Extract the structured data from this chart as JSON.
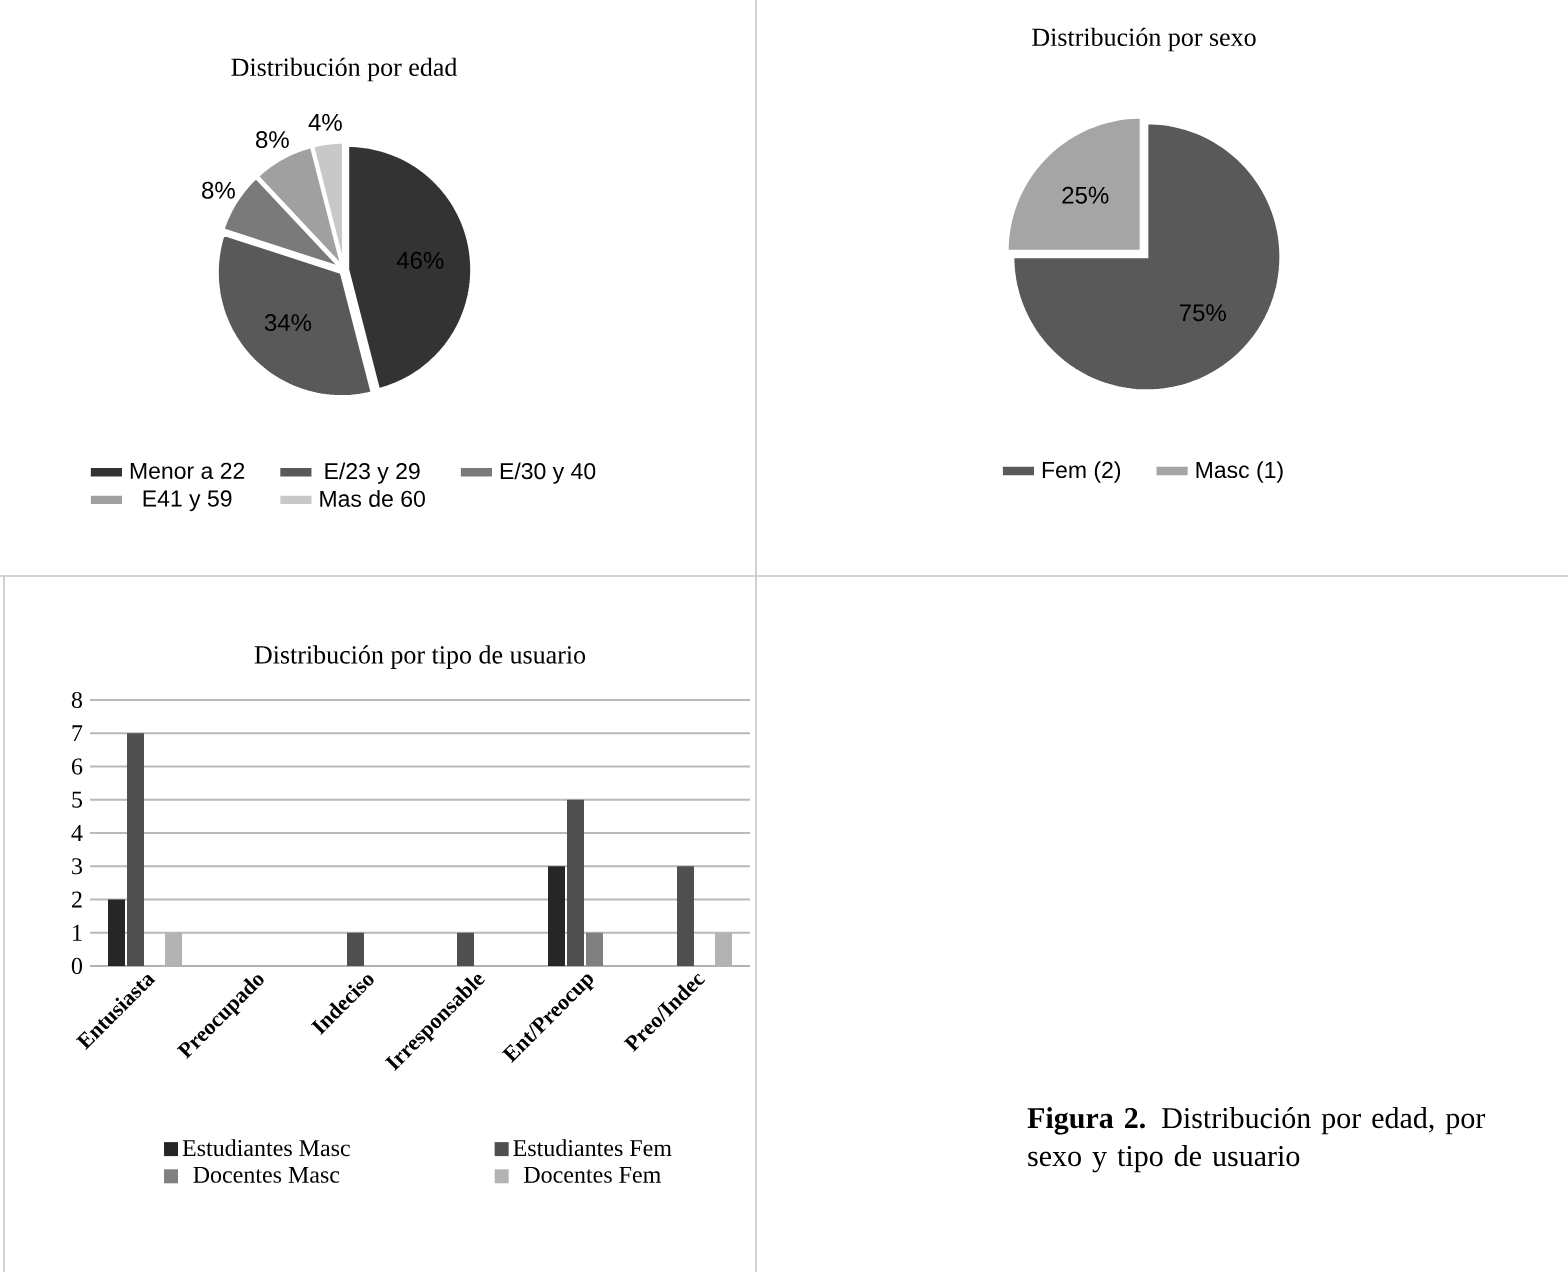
{
  "chart_data": [
    {
      "type": "pie",
      "title": "Distribución por edad",
      "categories": [
        "Menor a 22",
        "E/23 y 29",
        "E/30 y 40",
        "E41 y 59",
        "Mas de 60"
      ],
      "values": [
        46,
        34,
        8,
        8,
        4
      ],
      "value_labels": [
        "46%",
        "34%",
        "8%",
        "8%",
        "4%"
      ],
      "colors": [
        "#333333",
        "#595959",
        "#7a7a7a",
        "#a0a0a0",
        "#c8c8c8"
      ],
      "legend": "bottom"
    },
    {
      "type": "pie",
      "title": "Distribución por sexo",
      "categories": [
        "Fem (2)",
        "Masc (1)"
      ],
      "values": [
        75,
        25
      ],
      "value_labels": [
        "75%",
        "25%"
      ],
      "colors": [
        "#595959",
        "#a5a5a5"
      ],
      "legend": "bottom"
    },
    {
      "type": "bar",
      "title": "Distribución por tipo de usuario",
      "categories": [
        "Entusiasta",
        "Preocupado",
        "Indeciso",
        "Irresponsable",
        "Ent/Preocup",
        "Preo/Indec"
      ],
      "ylim": [
        0,
        8
      ],
      "yticks": [
        0,
        1,
        2,
        3,
        4,
        5,
        6,
        7,
        8
      ],
      "grid": "y",
      "legend": "bottom",
      "series": [
        {
          "name": "Estudiantes Masc",
          "color": "#262626",
          "values": [
            2,
            0,
            0,
            0,
            3,
            0
          ]
        },
        {
          "name": "Estudiantes Fem",
          "color": "#4f4f4f",
          "values": [
            7,
            0,
            1,
            1,
            5,
            3
          ]
        },
        {
          "name": "Docentes Masc",
          "color": "#808080",
          "values": [
            0,
            0,
            0,
            0,
            1,
            0
          ]
        },
        {
          "name": "Docentes Fem",
          "color": "#b3b3b3",
          "values": [
            1,
            0,
            0,
            0,
            0,
            1
          ]
        }
      ]
    },
    {
      "type": "other",
      "annotations": [
        "**Figura 2.** Distribución por edad, por sexo y tipo de usuario"
      ]
    }
  ]
}
